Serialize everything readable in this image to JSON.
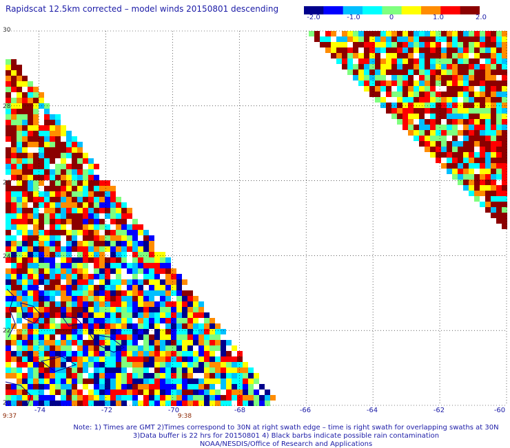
{
  "title": "Rapidscat 12.5km corrected – model winds 20150801 descending",
  "colorbar": {
    "labels": [
      "-2.0",
      "-1.0",
      "0",
      "1.0",
      "2.0"
    ],
    "values": [
      -2.0,
      -1.0,
      0,
      1.0,
      2.0
    ],
    "min": -2.0,
    "max": 2.0,
    "colors": [
      "#00008b",
      "#0000ff",
      "#00bfff",
      "#00ffff",
      "#7fff7f",
      "#ffff00",
      "#ff8c00",
      "#ff0000",
      "#8b0000"
    ]
  },
  "axes": {
    "lat_labels": [
      "30",
      "28",
      "26",
      "24",
      "22",
      "20"
    ],
    "lat_values": [
      30,
      28,
      26,
      24,
      22,
      20
    ],
    "lon_labels": [
      "-74",
      "-72",
      "-70",
      "-68",
      "-66",
      "-64",
      "-62",
      "-60"
    ],
    "lon_values": [
      -74,
      -72,
      -70,
      -68,
      -66,
      -64,
      -62,
      -60
    ],
    "lon_range": [
      -75,
      -60
    ],
    "lat_range": [
      20,
      30
    ],
    "grid": true
  },
  "swath_times": [
    "9:37",
    "9:38"
  ],
  "notes": [
    "Note: 1) Times are GMT 2)Times correspond to 30N at right swath edge – time is right swath for overlapping swaths at 30N",
    "3)Data buffer is 22 hrs for 20150801 4) Black barbs indicate possible rain contamination",
    "NOAA/NESDIS/Office of Research and Applications"
  ]
}
